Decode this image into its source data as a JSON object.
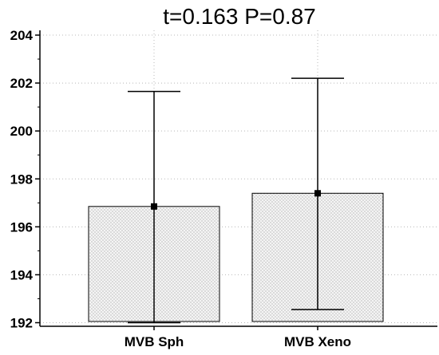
{
  "chart_data": {
    "type": "bar",
    "title": "t=0.163  P=0.87",
    "xlabel": "",
    "ylabel": "",
    "categories": [
      "MVB  Sph",
      "MVB  Xeno"
    ],
    "values": [
      196.85,
      197.4
    ],
    "error_low": [
      192.0,
      192.55
    ],
    "error_high": [
      201.65,
      202.2
    ],
    "ylim": [
      191.85,
      204.2
    ],
    "yticks": [
      192,
      194,
      196,
      198,
      200,
      202,
      204
    ],
    "grid": true,
    "bar_fill": "dotted",
    "colors": {
      "bar_fill": "#f2f2f2",
      "bar_stroke": "#000000",
      "grid": "#b8b8b8",
      "marker": "#000000"
    }
  }
}
